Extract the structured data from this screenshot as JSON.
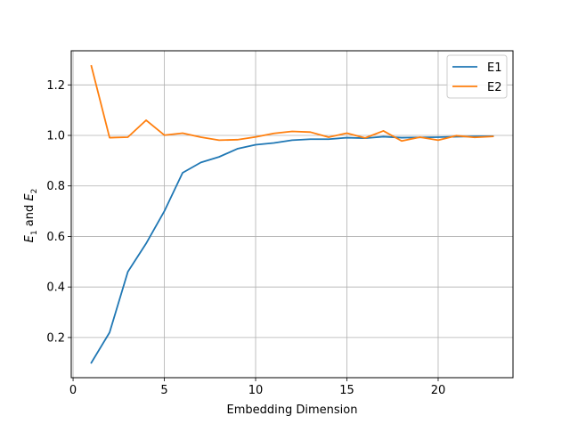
{
  "chart_data": {
    "type": "line",
    "title": "",
    "xlabel": "Embedding Dimension",
    "ylabel": {
      "base1": "E",
      "sub1": "1",
      "mid": " and ",
      "base2": "E",
      "sub2": "2"
    },
    "xlim": [
      -0.1,
      24.1
    ],
    "ylim": [
      0.041,
      1.335
    ],
    "xticks": [
      0,
      5,
      10,
      15,
      20
    ],
    "yticks": [
      0.2,
      0.4,
      0.6,
      0.8,
      1.0,
      1.2
    ],
    "ytick_labels": [
      "0.2",
      "0.4",
      "0.6",
      "0.8",
      "1.0",
      "1.2"
    ],
    "grid": true,
    "legend_position": "top-right",
    "x": [
      1,
      2,
      3,
      4,
      5,
      6,
      7,
      8,
      9,
      10,
      11,
      12,
      13,
      14,
      15,
      16,
      17,
      18,
      19,
      20,
      21,
      22,
      23
    ],
    "series": [
      {
        "name": "E1",
        "color": "#1f77b4",
        "values": [
          0.1,
          0.22,
          0.46,
          0.572,
          0.7,
          0.852,
          0.893,
          0.915,
          0.947,
          0.963,
          0.97,
          0.981,
          0.985,
          0.985,
          0.991,
          0.989,
          0.995,
          0.991,
          0.992,
          0.993,
          0.995,
          0.996,
          0.997
        ]
      },
      {
        "name": "E2",
        "color": "#ff7f0e",
        "values": [
          1.275,
          0.991,
          0.993,
          1.06,
          1.001,
          1.009,
          0.993,
          0.981,
          0.983,
          0.994,
          1.008,
          1.016,
          1.013,
          0.993,
          1.009,
          0.99,
          1.018,
          0.978,
          0.993,
          0.981,
          0.999,
          0.992,
          0.996
        ]
      }
    ]
  }
}
